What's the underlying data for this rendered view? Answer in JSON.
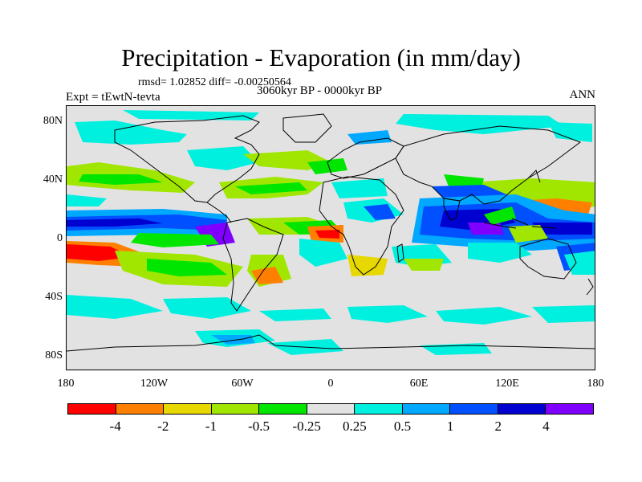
{
  "header": {
    "title": "Precipitation - Evaporation (in mm/day)",
    "stats": "rmsd= 1.02852 diff= -0.00250564",
    "experiment": "Expt = tEwtN-tevta",
    "period": "3060kyr BP - 0000kyr BP",
    "season": "ANN"
  },
  "map": {
    "lat_ticks": [
      "80N",
      "40N",
      "0",
      "40S",
      "80S"
    ],
    "lon_ticks": [
      "180",
      "120W",
      "60W",
      "0",
      "60E",
      "120E",
      "180"
    ],
    "background_color": "#e2e2e2"
  },
  "colorbar": {
    "colors": [
      "#ff0000",
      "#ff8000",
      "#e6d800",
      "#a0e600",
      "#00e600",
      "#e2e2e2",
      "#00f0e0",
      "#00a8ff",
      "#0050ff",
      "#0000d0",
      "#8000ff"
    ],
    "labels": [
      "-4",
      "-2",
      "-1",
      "-0.5",
      "-0.25",
      "0.25",
      "0.5",
      "1",
      "2",
      "4"
    ]
  }
}
